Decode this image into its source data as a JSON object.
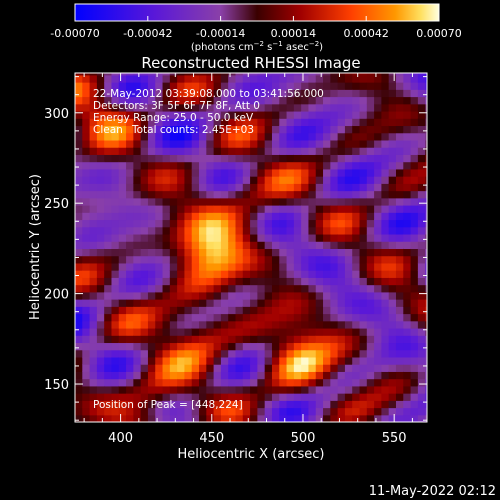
{
  "colorbar": {
    "ticks": [
      "-0.00070",
      "-0.00042",
      "-0.00014",
      "0.00014",
      "0.00042",
      "0.00070"
    ],
    "units_html": "(photons cm<tspan baseline-shift=\"super\" font-size=\"7\">−2</tspan> s<tspan baseline-shift=\"super\" font-size=\"7\">−1</tspan> asec<tspan baseline-shift=\"super\" font-size=\"7\">−2</tspan>)"
  },
  "footer": {
    "timestamp": "11-May-2022 02:12"
  },
  "chart_data": {
    "type": "heatmap",
    "title": "Reconstructed RHESSI Image",
    "xlabel": "Heliocentric X (arcsec)",
    "ylabel": "Heliocentric Y (arcsec)",
    "xlim": [
      375,
      568
    ],
    "ylim": [
      129,
      322
    ],
    "xticks": [
      400,
      450,
      500,
      550
    ],
    "yticks": [
      150,
      200,
      250,
      300
    ],
    "colorbar_range": [
      -0.0007,
      0.0007
    ],
    "annotations": {
      "time_range": "22-May-2012 03:39:08.000 to 03:41:56.000",
      "detectors": "Detectors: 3F 5F 6F 7F 8F, Att 0",
      "energy": "Energy Range: 25.0 - 50.0 keV",
      "method": "Clean",
      "counts": "Total counts: 2.45E+03",
      "peak": "Position of Peak = [448,224]"
    },
    "sources": [
      {
        "x": 448,
        "y": 224,
        "value": 0.0007
      },
      {
        "x": 497,
        "y": 165,
        "value": 0.00055
      },
      {
        "x": 440,
        "y": 180,
        "value": 0.0004
      },
      {
        "x": 415,
        "y": 140,
        "value": 0.0004
      },
      {
        "x": 390,
        "y": 300,
        "value": 0.00035
      },
      {
        "x": 470,
        "y": 255,
        "value": 0.0003
      }
    ],
    "grid": false
  }
}
